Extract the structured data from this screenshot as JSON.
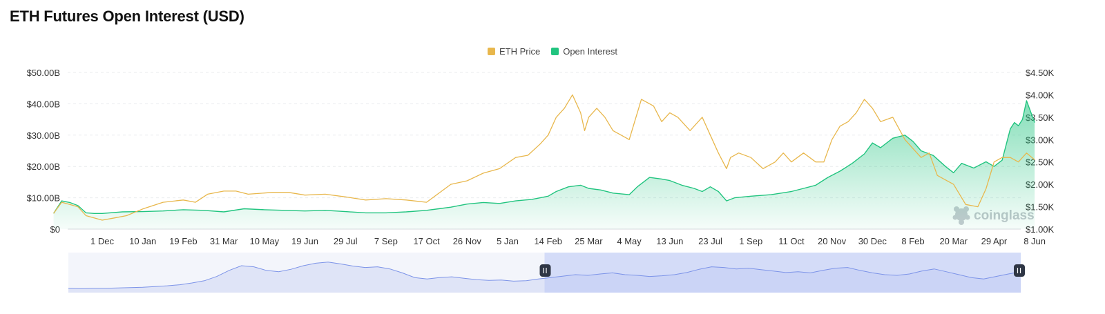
{
  "title": "ETH Futures Open Interest (USD)",
  "watermark": "coinglass",
  "legend": [
    {
      "label": "ETH Price",
      "color": "#e8b74c"
    },
    {
      "label": "Open Interest",
      "color": "#21c47f"
    }
  ],
  "chart_data": {
    "type": "line",
    "title": "ETH Futures Open Interest (USD)",
    "legend_position": "top-center",
    "grid": true,
    "x_tick_labels": [
      "1 Dec",
      "10 Jan",
      "19 Feb",
      "31 Mar",
      "10 May",
      "19 Jun",
      "29 Jul",
      "7 Sep",
      "17 Oct",
      "26 Nov",
      "5 Jan",
      "14 Feb",
      "25 Mar",
      "4 May",
      "13 Jun",
      "23 Jul",
      "1 Sep",
      "11 Oct",
      "20 Nov",
      "30 Dec",
      "8 Feb",
      "20 Mar",
      "29 Apr",
      "8 Jun"
    ],
    "y_left": {
      "ticks": [
        "$0",
        "$10.00B",
        "$20.00B",
        "$30.00B",
        "$40.00B",
        "$50.00B"
      ],
      "range": [
        0,
        50
      ],
      "unit": "B USD"
    },
    "y_right": {
      "ticks": [
        "$1.00K",
        "$1.50K",
        "$2.00K",
        "$2.50K",
        "$3.00K",
        "$3.50K",
        "$4.00K",
        "$4.50K"
      ],
      "range": [
        1.0,
        4.5
      ],
      "unit": "K USD"
    },
    "x_range": [
      -1.2,
      23.0
    ],
    "series": [
      {
        "name": "ETH Price",
        "axis": "right",
        "color": "#e8b74c",
        "x": [
          -1.2,
          -1.0,
          -0.8,
          -0.6,
          -0.4,
          -0.2,
          0,
          0.3,
          0.6,
          1.0,
          1.5,
          2.0,
          2.3,
          2.6,
          3.0,
          3.3,
          3.6,
          3.9,
          4.2,
          4.6,
          5.0,
          5.5,
          6.0,
          6.5,
          7.0,
          7.5,
          8.0,
          8.3,
          8.6,
          9.0,
          9.4,
          9.8,
          10.2,
          10.5,
          10.8,
          11.0,
          11.2,
          11.4,
          11.6,
          11.8,
          11.9,
          12.0,
          12.2,
          12.4,
          12.6,
          12.8,
          13.0,
          13.3,
          13.6,
          13.8,
          14.0,
          14.2,
          14.5,
          14.8,
          15.0,
          15.2,
          15.4,
          15.5,
          15.7,
          16.0,
          16.3,
          16.6,
          16.8,
          17.0,
          17.3,
          17.6,
          17.8,
          18.0,
          18.2,
          18.4,
          18.6,
          18.8,
          19.0,
          19.2,
          19.5,
          19.8,
          20.0,
          20.2,
          20.4,
          20.6,
          20.8,
          21.0,
          21.3,
          21.6,
          21.8,
          22.0,
          22.2,
          22.4,
          22.6,
          22.8,
          23.0
        ],
        "values": [
          1.35,
          1.6,
          1.55,
          1.5,
          1.3,
          1.25,
          1.2,
          1.25,
          1.3,
          1.45,
          1.6,
          1.65,
          1.6,
          1.78,
          1.85,
          1.85,
          1.78,
          1.8,
          1.82,
          1.82,
          1.76,
          1.78,
          1.72,
          1.65,
          1.68,
          1.65,
          1.6,
          1.8,
          2.0,
          2.08,
          2.25,
          2.35,
          2.6,
          2.65,
          2.9,
          3.1,
          3.5,
          3.7,
          4.0,
          3.6,
          3.2,
          3.5,
          3.7,
          3.5,
          3.2,
          3.1,
          3.0,
          3.9,
          3.75,
          3.4,
          3.6,
          3.5,
          3.2,
          3.5,
          3.1,
          2.7,
          2.35,
          2.6,
          2.7,
          2.6,
          2.35,
          2.5,
          2.7,
          2.5,
          2.7,
          2.5,
          2.5,
          3.0,
          3.3,
          3.4,
          3.6,
          3.9,
          3.7,
          3.4,
          3.5,
          3.0,
          2.8,
          2.6,
          2.7,
          2.2,
          2.1,
          2.0,
          1.55,
          1.5,
          1.9,
          2.5,
          2.6,
          2.6,
          2.5,
          2.7,
          2.55
        ]
      },
      {
        "name": "Open Interest",
        "axis": "left",
        "color": "#21c47f",
        "x": [
          -1.2,
          -1.0,
          -0.8,
          -0.6,
          -0.4,
          -0.2,
          0,
          0.5,
          1.0,
          1.5,
          2.0,
          2.5,
          3.0,
          3.5,
          4.0,
          4.5,
          5.0,
          5.5,
          6.0,
          6.5,
          7.0,
          7.5,
          8.0,
          8.3,
          8.6,
          9.0,
          9.4,
          9.8,
          10.2,
          10.6,
          11.0,
          11.2,
          11.5,
          11.8,
          12.0,
          12.3,
          12.6,
          13.0,
          13.2,
          13.5,
          13.8,
          14.0,
          14.3,
          14.6,
          14.8,
          15.0,
          15.2,
          15.4,
          15.6,
          16.0,
          16.5,
          17.0,
          17.3,
          17.6,
          17.9,
          18.2,
          18.5,
          18.8,
          19.0,
          19.2,
          19.5,
          19.8,
          20.0,
          20.2,
          20.5,
          20.8,
          21.0,
          21.2,
          21.5,
          21.8,
          22.0,
          22.2,
          22.4,
          22.5,
          22.6,
          22.7,
          22.8,
          23.0
        ],
        "values": [
          5.0,
          9.0,
          8.5,
          7.5,
          5.2,
          5.0,
          5.0,
          5.5,
          5.6,
          5.8,
          6.2,
          6.0,
          5.5,
          6.5,
          6.2,
          6.0,
          5.8,
          6.0,
          5.6,
          5.2,
          5.2,
          5.5,
          6.0,
          6.5,
          7.0,
          8.0,
          8.5,
          8.2,
          9.0,
          9.5,
          10.5,
          12.0,
          13.5,
          14.0,
          13.0,
          12.5,
          11.5,
          11.0,
          13.5,
          16.5,
          16.0,
          15.5,
          14.0,
          13.0,
          12.0,
          13.5,
          12.0,
          9.0,
          10.0,
          10.5,
          11.0,
          12.0,
          13.0,
          14.0,
          16.5,
          18.5,
          21.0,
          24.0,
          27.5,
          26.0,
          29.0,
          30.0,
          28.0,
          25.0,
          23.5,
          20.0,
          18.0,
          21.0,
          19.5,
          21.5,
          20.0,
          22.0,
          32.0,
          34.0,
          33.0,
          35.0,
          41.0,
          34.0
        ]
      }
    ]
  },
  "navigator": {
    "selection_range": [
      0.5,
      1.0
    ],
    "values": [
      0.12,
      0.11,
      0.12,
      0.12,
      0.13,
      0.14,
      0.15,
      0.17,
      0.19,
      0.22,
      0.27,
      0.33,
      0.45,
      0.62,
      0.75,
      0.72,
      0.62,
      0.58,
      0.65,
      0.75,
      0.82,
      0.85,
      0.8,
      0.74,
      0.7,
      0.72,
      0.66,
      0.55,
      0.42,
      0.38,
      0.42,
      0.44,
      0.4,
      0.36,
      0.34,
      0.35,
      0.32,
      0.33,
      0.38,
      0.42,
      0.46,
      0.5,
      0.48,
      0.52,
      0.55,
      0.5,
      0.48,
      0.45,
      0.47,
      0.5,
      0.56,
      0.65,
      0.72,
      0.7,
      0.66,
      0.68,
      0.64,
      0.6,
      0.56,
      0.58,
      0.55,
      0.62,
      0.68,
      0.7,
      0.62,
      0.55,
      0.5,
      0.48,
      0.52,
      0.6,
      0.66,
      0.58,
      0.5,
      0.42,
      0.38,
      0.45,
      0.52,
      0.58
    ]
  }
}
